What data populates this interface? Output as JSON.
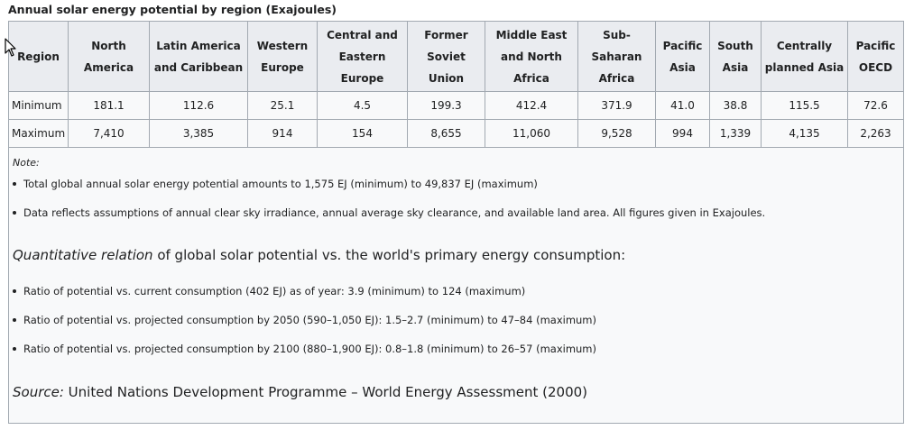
{
  "caption": "Annual solar energy potential by region (Exajoules)",
  "table": {
    "headers": [
      [
        "Region"
      ],
      [
        "North",
        "America"
      ],
      [
        "Latin America",
        "and Caribbean"
      ],
      [
        "Western",
        "Europe"
      ],
      [
        "Central and",
        "Eastern",
        "Europe"
      ],
      [
        "Former",
        "Soviet",
        "Union"
      ],
      [
        "Middle East",
        "and North",
        "Africa"
      ],
      [
        "Sub-",
        "Saharan",
        "Africa"
      ],
      [
        "Pacific",
        "Asia"
      ],
      [
        "South",
        "Asia"
      ],
      [
        "Centrally",
        "planned Asia"
      ],
      [
        "Pacific",
        "OECD"
      ]
    ],
    "rows": [
      [
        "Minimum",
        "181.1",
        "112.6",
        "25.1",
        "4.5",
        "199.3",
        "412.4",
        "371.9",
        "41.0",
        "38.8",
        "115.5",
        "72.6"
      ],
      [
        "Maximum",
        "7,410",
        "3,385",
        "914",
        "154",
        "8,655",
        "11,060",
        "9,528",
        "994",
        "1,339",
        "4,135",
        "2,263"
      ]
    ]
  },
  "notes": {
    "label": "Note:",
    "bullets": [
      "Total global annual solar energy potential amounts to 1,575 EJ (minimum) to 49,837 EJ (maximum)",
      "Data reflects assumptions of annual clear sky irradiance, annual average sky clearance, and available land area. All figures given in Exajoules."
    ],
    "heading_italic": "Quantitative relation",
    "heading_rest": " of global solar potential vs. the world's primary energy consumption:",
    "ratio_bullets": [
      "Ratio of potential vs. current consumption (402 EJ) as of year: 3.9 (minimum) to 124 (maximum)",
      "Ratio of potential vs. projected consumption by 2050 (590–1,050 EJ): 1.5–2.7 (minimum) to 47–84 (maximum)",
      "Ratio of potential vs. projected consumption by 2100 (880–1,900 EJ): 0.8–1.8 (minimum) to 26–57 (maximum)"
    ],
    "source_label": "Source:",
    "source_text": " United Nations Development Programme – World Energy Assessment (2000)"
  }
}
